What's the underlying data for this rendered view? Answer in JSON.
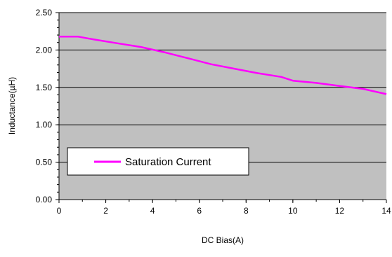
{
  "chart_data": {
    "type": "line",
    "xlabel": "DC Bias(A)",
    "ylabel": "Inductance(µH)",
    "xlim": [
      0,
      14
    ],
    "ylim": [
      0,
      2.5
    ],
    "x_ticks": [
      "0",
      "2",
      "4",
      "6",
      "8",
      "10",
      "12",
      "14"
    ],
    "y_ticks": [
      "0.00",
      "0.50",
      "1.00",
      "1.50",
      "2.00",
      "2.50"
    ],
    "grid": "horizontal",
    "legend_position": "lower-left",
    "plot_background": "#c0c0c0",
    "series": [
      {
        "name": "Saturation Current",
        "color": "#ff00ff",
        "x": [
          0,
          0.8,
          1.5,
          2.5,
          3.5,
          4.5,
          5.5,
          6.5,
          7.5,
          8.5,
          9.5,
          10.0,
          11.0,
          12.0,
          13.0,
          14.0
        ],
        "y": [
          2.18,
          2.18,
          2.14,
          2.09,
          2.04,
          1.97,
          1.89,
          1.81,
          1.75,
          1.69,
          1.64,
          1.59,
          1.56,
          1.52,
          1.48,
          1.41
        ]
      }
    ]
  }
}
